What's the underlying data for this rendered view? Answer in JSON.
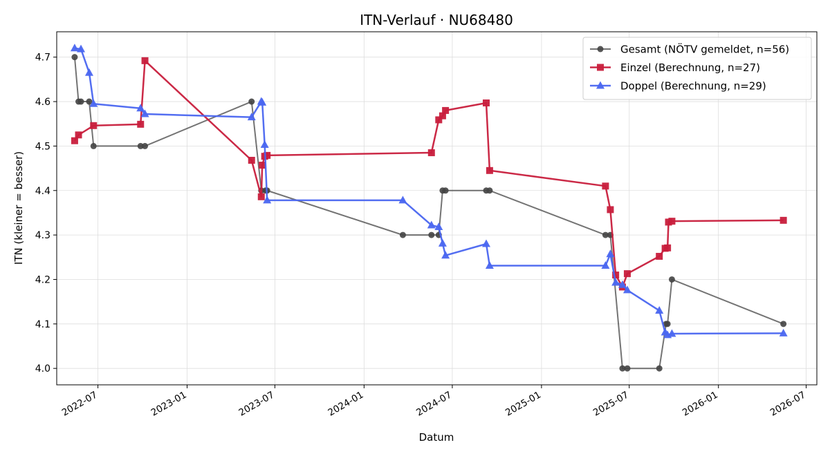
{
  "chart_data": {
    "type": "line",
    "title": "ITN-Verlauf · NU68480",
    "xlabel": "Datum",
    "ylabel": "ITN  (kleiner = besser)",
    "xlim": [
      "2022-04-07",
      "2026-07-23"
    ],
    "ylim": [
      3.963,
      4.757
    ],
    "x_ticks": [
      "2022-07-01",
      "2023-01-01",
      "2023-07-01",
      "2024-01-01",
      "2024-07-01",
      "2025-01-01",
      "2025-07-01",
      "2026-01-01",
      "2026-07-01"
    ],
    "x_tick_labels": [
      "2022-07",
      "2023-01",
      "2023-07",
      "2024-01",
      "2024-07",
      "2025-01",
      "2025-07",
      "2026-01",
      "2026-07"
    ],
    "y_ticks": [
      4.0,
      4.1,
      4.2,
      4.3,
      4.4,
      4.5,
      4.6,
      4.7
    ],
    "y_tick_labels": [
      "4.0",
      "4.1",
      "4.2",
      "4.3",
      "4.4",
      "4.5",
      "4.6",
      "4.7"
    ],
    "grid": true,
    "legend_position": "top-right",
    "series": [
      {
        "name": "Gesamt (NÖTV gemeldet, n=56)",
        "color": "#444444",
        "marker": "circle",
        "points": [
          [
            "2022-05-14",
            4.7
          ],
          [
            "2022-05-22",
            4.6
          ],
          [
            "2022-05-27",
            4.6
          ],
          [
            "2022-06-13",
            4.6
          ],
          [
            "2022-06-22",
            4.5
          ],
          [
            "2022-09-27",
            4.5
          ],
          [
            "2022-10-06",
            4.5
          ],
          [
            "2023-05-14",
            4.6
          ],
          [
            "2023-06-03",
            4.4
          ],
          [
            "2023-06-12",
            4.4
          ],
          [
            "2023-06-15",
            4.4
          ],
          [
            "2024-03-21",
            4.3
          ],
          [
            "2024-05-19",
            4.3
          ],
          [
            "2024-06-03",
            4.3
          ],
          [
            "2024-06-11",
            4.4
          ],
          [
            "2024-06-17",
            4.4
          ],
          [
            "2024-09-09",
            4.4
          ],
          [
            "2024-09-16",
            4.4
          ],
          [
            "2025-05-13",
            4.3
          ],
          [
            "2025-05-23",
            4.3
          ],
          [
            "2025-06-17",
            4.0
          ],
          [
            "2025-06-27",
            4.0
          ],
          [
            "2025-09-01",
            4.0
          ],
          [
            "2025-09-15",
            4.1
          ],
          [
            "2025-09-18",
            4.1
          ],
          [
            "2025-09-27",
            4.2
          ],
          [
            "2026-05-15",
            4.1
          ]
        ]
      },
      {
        "name": "Einzel (Berechnung, n=27)",
        "color": "#c81e3c",
        "marker": "square",
        "points": [
          [
            "2022-05-14",
            4.512
          ],
          [
            "2022-05-22",
            4.525
          ],
          [
            "2022-06-22",
            4.546
          ],
          [
            "2022-09-27",
            4.549
          ],
          [
            "2022-10-06",
            4.692
          ],
          [
            "2023-05-14",
            4.468
          ],
          [
            "2023-06-03",
            4.386
          ],
          [
            "2023-06-05",
            4.457
          ],
          [
            "2023-06-10",
            4.477
          ],
          [
            "2023-06-15",
            4.479
          ],
          [
            "2024-05-19",
            4.485
          ],
          [
            "2024-06-03",
            4.559
          ],
          [
            "2024-06-11",
            4.568
          ],
          [
            "2024-06-17",
            4.58
          ],
          [
            "2024-09-09",
            4.597
          ],
          [
            "2024-09-16",
            4.445
          ],
          [
            "2025-05-13",
            4.41
          ],
          [
            "2025-05-23",
            4.357
          ],
          [
            "2025-06-03",
            4.21
          ],
          [
            "2025-06-17",
            4.183
          ],
          [
            "2025-06-27",
            4.213
          ],
          [
            "2025-09-01",
            4.252
          ],
          [
            "2025-09-13",
            4.27
          ],
          [
            "2025-09-18",
            4.271
          ],
          [
            "2025-09-20",
            4.329
          ],
          [
            "2025-09-27",
            4.331
          ],
          [
            "2026-05-15",
            4.333
          ]
        ]
      },
      {
        "name": "Doppel (Berechnung, n=29)",
        "color": "#4a66f0",
        "marker": "triangle",
        "points": [
          [
            "2022-05-14",
            4.72
          ],
          [
            "2022-05-27",
            4.718
          ],
          [
            "2022-06-13",
            4.665
          ],
          [
            "2022-06-22",
            4.595
          ],
          [
            "2022-09-27",
            4.585
          ],
          [
            "2022-10-06",
            4.572
          ],
          [
            "2023-05-14",
            4.565
          ],
          [
            "2023-06-03",
            4.6
          ],
          [
            "2023-06-05",
            4.598
          ],
          [
            "2023-06-10",
            4.503
          ],
          [
            "2023-06-15",
            4.378
          ],
          [
            "2024-03-21",
            4.378
          ],
          [
            "2024-05-19",
            4.322
          ],
          [
            "2024-06-03",
            4.318
          ],
          [
            "2024-06-11",
            4.281
          ],
          [
            "2024-06-17",
            4.254
          ],
          [
            "2024-09-09",
            4.28
          ],
          [
            "2024-09-16",
            4.231
          ],
          [
            "2025-05-13",
            4.231
          ],
          [
            "2025-05-23",
            4.257
          ],
          [
            "2025-06-03",
            4.193
          ],
          [
            "2025-06-17",
            4.188
          ],
          [
            "2025-06-27",
            4.176
          ],
          [
            "2025-09-01",
            4.13
          ],
          [
            "2025-09-13",
            4.081
          ],
          [
            "2025-09-18",
            4.075
          ],
          [
            "2025-09-27",
            4.078
          ],
          [
            "2026-05-15",
            4.079
          ]
        ]
      }
    ]
  }
}
